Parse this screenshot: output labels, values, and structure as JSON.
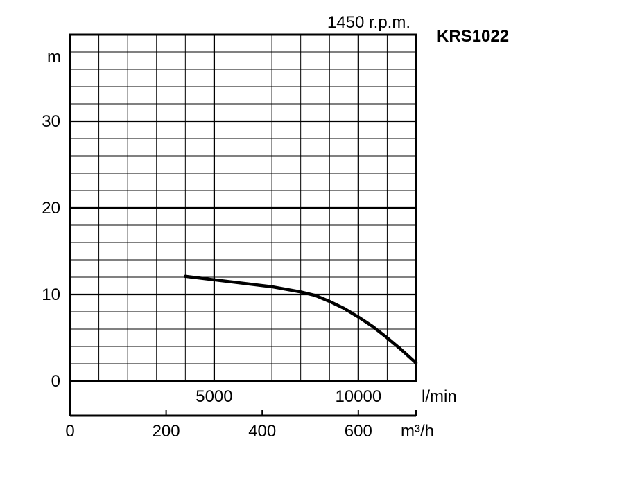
{
  "chart_data": {
    "type": "line",
    "title": "KRS1022",
    "subtitle": "1450 r.p.m.",
    "ylabel": "m",
    "xlabel_primary": "l/min",
    "xlabel_secondary": "m³/h",
    "ylim": [
      0,
      40
    ],
    "xlim_lmin": [
      0,
      12000
    ],
    "xlim_m3h": [
      0,
      720
    ],
    "grid": true,
    "y_ticks": [
      {
        "value": 0,
        "label": "0"
      },
      {
        "value": 10,
        "label": "10"
      },
      {
        "value": 20,
        "label": "20"
      },
      {
        "value": 30,
        "label": "30"
      }
    ],
    "x_ticks_lmin": [
      {
        "value": 5000,
        "label": "5000"
      },
      {
        "value": 10000,
        "label": "10000"
      }
    ],
    "x_ticks_m3h": [
      {
        "value": 0,
        "label": "0"
      },
      {
        "value": 200,
        "label": "200"
      },
      {
        "value": 400,
        "label": "400"
      },
      {
        "value": 600,
        "label": "600"
      }
    ],
    "series": [
      {
        "color": "#000000",
        "x_lmin": [
          4000,
          5000,
          6000,
          7000,
          8000,
          8500,
          9000,
          9500,
          10000,
          10500,
          11000,
          11500,
          12000
        ],
        "y": [
          12.1,
          11.7,
          11.3,
          10.9,
          10.3,
          9.9,
          9.2,
          8.4,
          7.4,
          6.3,
          5.0,
          3.6,
          2.1
        ]
      }
    ]
  }
}
